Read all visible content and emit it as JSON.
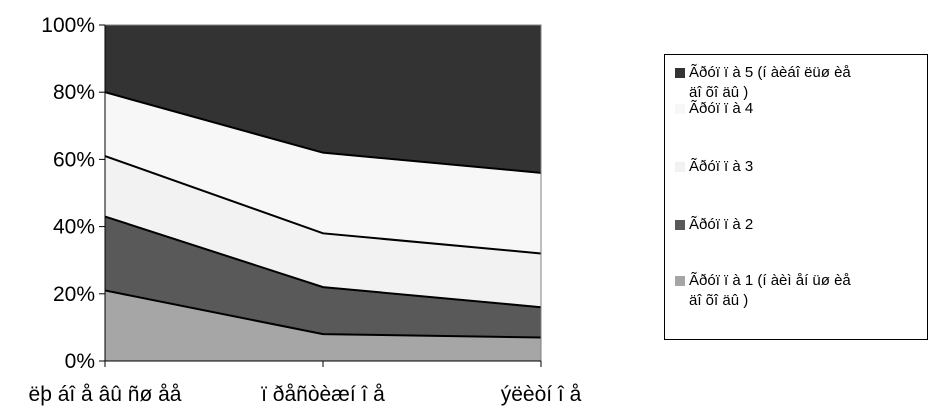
{
  "chart_data": {
    "type": "area",
    "stacked": "percent",
    "categories": [
      "ëþ áî å âû ñø åå",
      "ï ðåñòèæí î å",
      "ýëèòí î å"
    ],
    "series": [
      {
        "name": "Ãðóï ï à 1 (í àèì åí üø èå äî õî äû )",
        "values": [
          21,
          8,
          7
        ],
        "color": "#a6a6a6"
      },
      {
        "name": "Ãðóï ï à 2",
        "values": [
          22,
          14,
          9
        ],
        "color": "#595959"
      },
      {
        "name": "Ãðóï ï à 3",
        "values": [
          18,
          16,
          16
        ],
        "color": "#f2f2f2"
      },
      {
        "name": "Ãðóï ï à 4",
        "values": [
          19,
          24,
          24
        ],
        "color": "#f7f7f7"
      },
      {
        "name": "Ãðóï ï à 5 (í àèáî ëüø èå äî õî äû )",
        "values": [
          20,
          38,
          44
        ],
        "color": "#333333"
      }
    ],
    "y_ticks": [
      "0%",
      "20%",
      "40%",
      "60%",
      "80%",
      "100%"
    ],
    "ylim": [
      0,
      100
    ],
    "legend_position": "right",
    "grid": false
  }
}
